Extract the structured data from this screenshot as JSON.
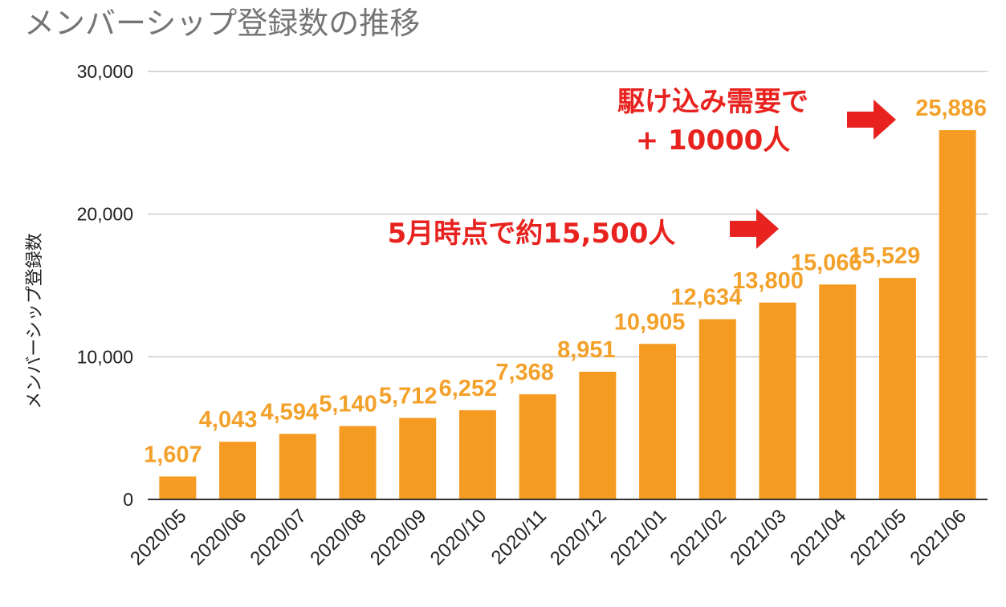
{
  "chart_data": {
    "type": "bar",
    "title": "メンバーシップ登録数の推移",
    "ylabel": "メンバーシップ登録数",
    "xlabel": "",
    "categories": [
      "2020/05",
      "2020/06",
      "2020/07",
      "2020/08",
      "2020/09",
      "2020/10",
      "2020/11",
      "2020/12",
      "2021/01",
      "2021/02",
      "2021/03",
      "2021/04",
      "2021/05",
      "2021/06"
    ],
    "values": [
      1607,
      4043,
      4594,
      5140,
      5712,
      6252,
      7368,
      8951,
      10905,
      12634,
      13800,
      15066,
      15529,
      25886
    ],
    "data_labels": [
      "1,607",
      "4,043",
      "4,594",
      "5,140",
      "5,712",
      "6,252",
      "7,368",
      "8,951",
      "10,905",
      "12,634",
      "13,800",
      "15,066",
      "15,529",
      "25,886"
    ],
    "ylim": [
      0,
      30000
    ],
    "yticks": [
      0,
      10000,
      20000,
      30000
    ],
    "ytick_labels": [
      "0",
      "10,000",
      "20,000",
      "30,000"
    ],
    "grid": true,
    "legend": "none",
    "colors": {
      "bar": "#F69B22",
      "data_label": "#F3A12A",
      "annotation": "#E8231F",
      "title": "#757575",
      "grid": "#CCCCCC",
      "axis": "#333333"
    },
    "annotations": [
      {
        "lines": [
          "駆け込み需要で",
          "+ 10000人"
        ],
        "arrow": "right-arrow-icon"
      },
      {
        "lines": [
          "5月時点で約15,500人"
        ],
        "arrow": "right-arrow-icon"
      }
    ]
  }
}
